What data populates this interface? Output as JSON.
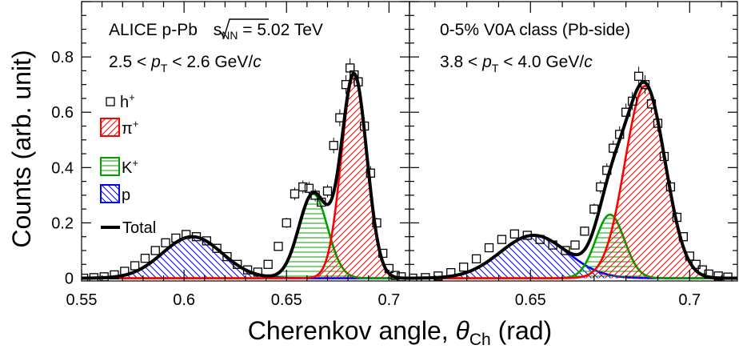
{
  "y_axis_label": "Counts (arb. unit)",
  "x_axis_label": {
    "prefix": "Cherenkov angle, ",
    "symbol": "θ",
    "subscript": "Ch",
    "suffix": " (rad)"
  },
  "colors": {
    "pion": "#ff0000",
    "kaon": "#00a000",
    "proton": "#0000ff",
    "total": "#000000",
    "data": "#000000"
  },
  "legend": {
    "hadron": {
      "symbol": "h",
      "sup": "+"
    },
    "pion": {
      "symbol": "π",
      "sup": "+"
    },
    "kaon": {
      "symbol": "K",
      "sup": "+"
    },
    "proton": {
      "symbol": "p"
    },
    "total": {
      "label": "Total"
    }
  },
  "chart_data": [
    {
      "type": "line",
      "panel": "left",
      "annotation_line1": {
        "prefix": "ALICE p-Pb ",
        "sqrt_s": "s",
        "sqrt_sub": "NN",
        "suffix": " = 5.02 TeV"
      },
      "annotation_line2": {
        "prefix": "2.5 < ",
        "var": "p",
        "var_sub": "T",
        "suffix": " < 2.6 GeV/",
        "unit_c": "c"
      },
      "xlim": [
        0.55,
        0.71
      ],
      "ylim": [
        -0.01,
        1.0
      ],
      "x_ticks": [
        "0.55",
        "0.6",
        "0.65",
        "0.7"
      ],
      "y_ticks": [
        "0",
        "0.2",
        "0.4",
        "0.6",
        "0.8"
      ],
      "components": {
        "proton": {
          "amplitude": 0.15,
          "mean": 0.604,
          "sigma": 0.0145
        },
        "kaon": {
          "amplitude": 0.305,
          "mean": 0.663,
          "sigma": 0.007
        },
        "pion": {
          "amplitude": 0.735,
          "mean": 0.683,
          "sigma": 0.0062
        }
      },
      "points": {
        "x": [
          0.551,
          0.556,
          0.561,
          0.566,
          0.571,
          0.576,
          0.581,
          0.586,
          0.591,
          0.596,
          0.601,
          0.606,
          0.611,
          0.616,
          0.621,
          0.626,
          0.631,
          0.636,
          0.641,
          0.646,
          0.65,
          0.654,
          0.658,
          0.661,
          0.664,
          0.667,
          0.67,
          0.673,
          0.676,
          0.679,
          0.681,
          0.683,
          0.685,
          0.688,
          0.691,
          0.694,
          0.697,
          0.7,
          0.703,
          0.706
        ],
        "y": [
          0.0,
          0.002,
          0.005,
          0.012,
          0.025,
          0.045,
          0.072,
          0.1,
          0.128,
          0.145,
          0.158,
          0.15,
          0.135,
          0.108,
          0.078,
          0.05,
          0.03,
          0.022,
          0.05,
          0.115,
          0.2,
          0.305,
          0.33,
          0.325,
          0.3,
          0.275,
          0.315,
          0.48,
          0.58,
          0.7,
          0.76,
          0.735,
          0.71,
          0.55,
          0.38,
          0.2,
          0.09,
          0.035,
          0.01,
          0.005
        ]
      }
    },
    {
      "type": "line",
      "panel": "right",
      "annotation_line1": {
        "text": "0-5% V0A class (Pb-side)"
      },
      "annotation_line2": {
        "prefix": "3.8 < ",
        "var": "p",
        "var_sub": "T",
        "suffix": " < 4.0 GeV/",
        "unit_c": "c"
      },
      "xlim": [
        0.612,
        0.715
      ],
      "ylim": [
        -0.01,
        1.0
      ],
      "x_ticks": [
        "0.65",
        "0.7"
      ],
      "components": {
        "proton": {
          "amplitude": 0.155,
          "mean": 0.651,
          "sigma": 0.0105
        },
        "kaon": {
          "amplitude": 0.23,
          "mean": 0.675,
          "sigma": 0.0045
        },
        "pion": {
          "amplitude": 0.695,
          "mean": 0.686,
          "sigma": 0.0063
        }
      },
      "points": {
        "x": [
          0.613,
          0.617,
          0.621,
          0.625,
          0.629,
          0.633,
          0.637,
          0.641,
          0.645,
          0.649,
          0.653,
          0.657,
          0.661,
          0.664,
          0.667,
          0.67,
          0.672,
          0.674,
          0.676,
          0.678,
          0.68,
          0.682,
          0.684,
          0.686,
          0.688,
          0.69,
          0.692,
          0.694,
          0.696,
          0.698,
          0.7,
          0.702,
          0.704,
          0.706,
          0.709,
          0.712
        ],
        "y": [
          0.0,
          0.002,
          0.008,
          0.02,
          0.04,
          0.07,
          0.11,
          0.14,
          0.16,
          0.155,
          0.14,
          0.12,
          0.1,
          0.12,
          0.17,
          0.25,
          0.33,
          0.39,
          0.47,
          0.52,
          0.6,
          0.64,
          0.73,
          0.7,
          0.63,
          0.56,
          0.44,
          0.33,
          0.22,
          0.15,
          0.08,
          0.05,
          0.03,
          0.015,
          0.008,
          0.004
        ]
      }
    }
  ]
}
